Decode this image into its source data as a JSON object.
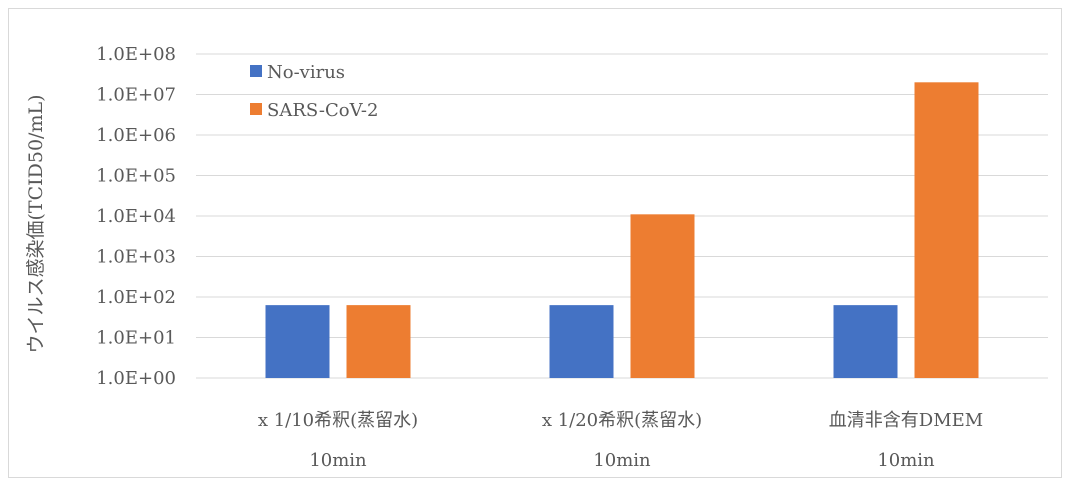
{
  "chart_data": {
    "type": "bar",
    "scale": "log",
    "ylabel": "ウイルス感染価(TCID50/mL)",
    "xlabel": "",
    "ylim": [
      1,
      100000000
    ],
    "y_ticks": [
      "1.0E+00",
      "1.0E+01",
      "1.0E+02",
      "1.0E+03",
      "1.0E+04",
      "1.0E+05",
      "1.0E+06",
      "1.0E+07",
      "1.0E+08"
    ],
    "categories": [
      {
        "line1": "x 1/10希釈(蒸留水)",
        "line2": "10min"
      },
      {
        "line1": "x 1/20希釈(蒸留水)",
        "line2": "10min"
      },
      {
        "line1": "血清非含有DMEM",
        "line2": "10min"
      }
    ],
    "series": [
      {
        "name": "No-virus",
        "color": "#4472C4",
        "values": [
          63,
          63,
          63
        ]
      },
      {
        "name": "SARS-CoV-2",
        "color": "#ED7D31",
        "values": [
          63,
          11000,
          20000000
        ]
      }
    ],
    "grid": true,
    "legend_position": "top-left"
  }
}
